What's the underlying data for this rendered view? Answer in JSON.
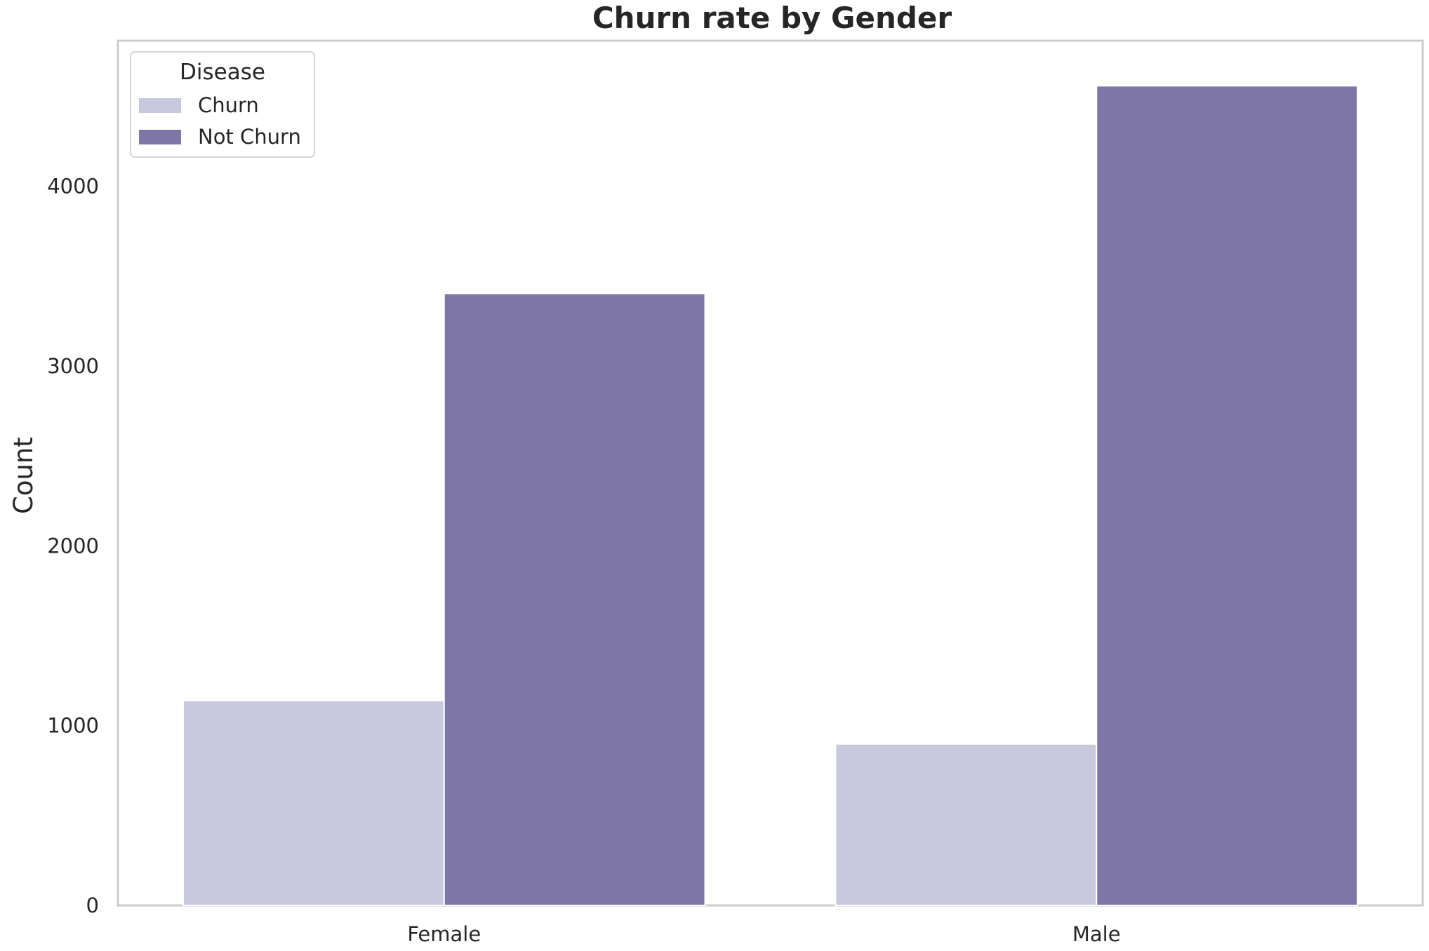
{
  "chart_data": {
    "type": "bar",
    "title": "Churn rate by Gender",
    "xlabel": "",
    "ylabel": "Count",
    "categories": [
      "Female",
      "Male"
    ],
    "series": [
      {
        "name": "Churn",
        "values": [
          1139,
          898
        ],
        "color": "#c8c9dc"
      },
      {
        "name": "Not Churn",
        "values": [
          3404,
          4559
        ],
        "color": "#7e76a6"
      }
    ],
    "ylim": [
      0,
      4810
    ],
    "yticks": [
      0,
      1000,
      2000,
      3000,
      4000
    ],
    "grid": false,
    "legend": {
      "title": "Disease",
      "placement": "top-left"
    }
  }
}
